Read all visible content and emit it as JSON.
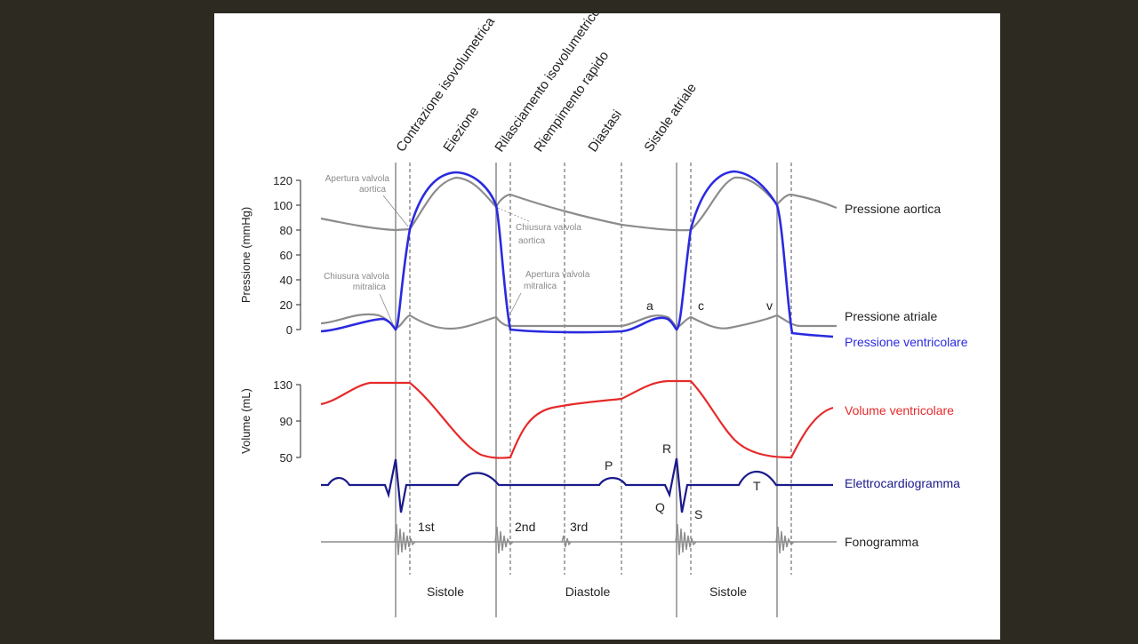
{
  "phases": [
    "Contrazione isovolumetrica",
    "Eiezione",
    "Rilasciamento isovolumetrico",
    "Riempimento rapido",
    "Diastasi",
    "Sistole atriale"
  ],
  "pressure_axis": {
    "label": "Pressione (mmHg)",
    "ticks": [
      "120",
      "100",
      "80",
      "60",
      "40",
      "20",
      "0"
    ]
  },
  "volume_axis": {
    "label": "Volume (mL)",
    "ticks": [
      "130",
      "90",
      "50"
    ]
  },
  "annotations": {
    "apertura_aortica": [
      "Apertura valvola",
      "aortica"
    ],
    "chiusura_aortica": [
      "Chiusura valvola",
      "aortica"
    ],
    "chiusura_mitralica": [
      "Chiusura valvola",
      "mitralica"
    ],
    "apertura_mitralica": [
      "Apertura valvola",
      "mitralica"
    ]
  },
  "curve_labels": {
    "aortic": "Pressione aortica",
    "atrial": "Pressione atriale",
    "ventricular": "Pressione ventricolare",
    "volume": "Volume ventricolare",
    "ecg": "Elettrocardiogramma",
    "phono": "Fonogramma"
  },
  "wave_letters": {
    "a": "a",
    "c": "c",
    "v": "v",
    "P": "P",
    "Q": "Q",
    "R": "R",
    "S": "S",
    "T": "T"
  },
  "heart_sounds": [
    "1st",
    "2nd",
    "3rd"
  ],
  "bottom_phases": [
    "Sistole",
    "Diastole",
    "Sistole"
  ],
  "colors": {
    "aortic": "#8c8c8c",
    "atrial": "#8c8c8c",
    "ventricular": "#2a2ae0",
    "volume": "#e62a2a",
    "ecg": "#1a1a8c",
    "phono": "#8c8c8c",
    "axis": "#222222"
  }
}
